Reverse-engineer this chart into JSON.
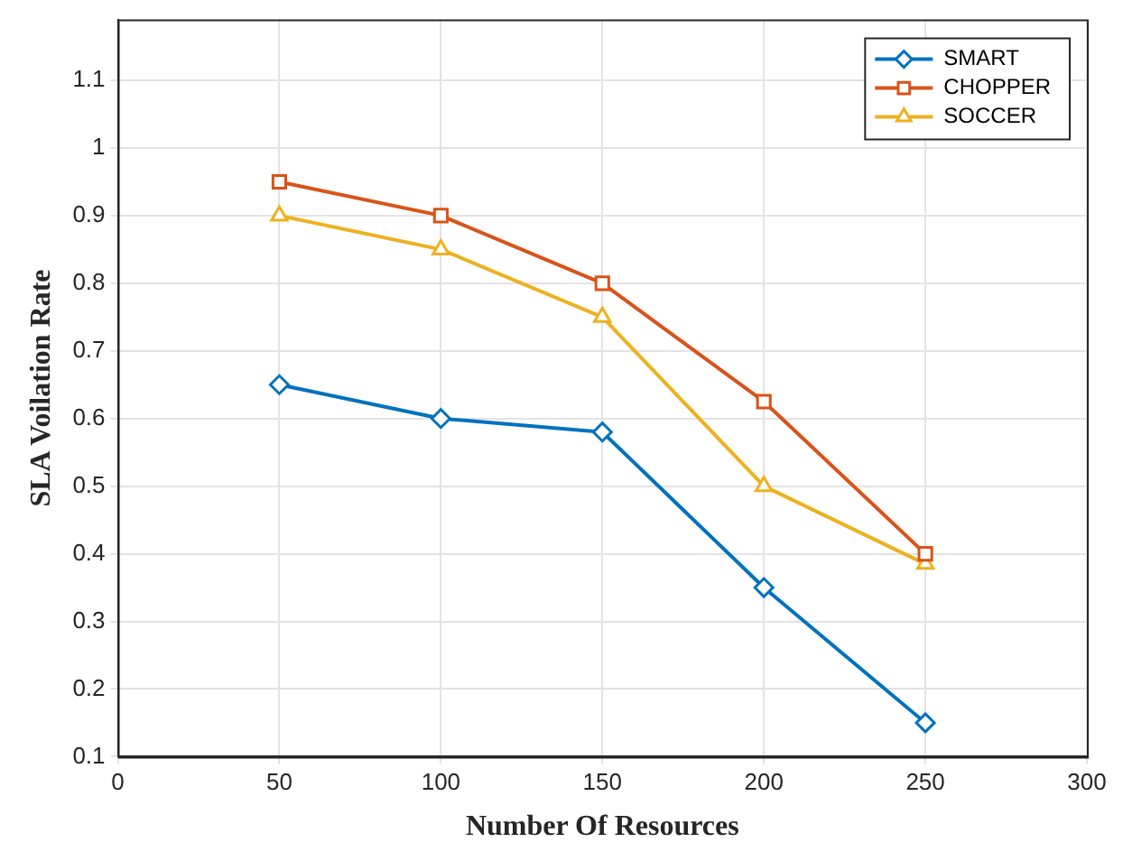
{
  "chart_data": {
    "type": "line",
    "xlabel": "Number Of Resources",
    "ylabel": "SLA Voilation Rate",
    "x": [
      50,
      100,
      150,
      200,
      250
    ],
    "series": [
      {
        "name": "SMART",
        "color": "#0072bd",
        "marker": "diamond",
        "values": [
          0.65,
          0.6,
          0.58,
          0.35,
          0.15
        ]
      },
      {
        "name": "CHOPPER",
        "color": "#d95319",
        "marker": "square",
        "values": [
          0.95,
          0.9,
          0.8,
          0.625,
          0.4
        ]
      },
      {
        "name": "SOCCER",
        "color": "#edb120",
        "marker": "triangle",
        "values": [
          0.9,
          0.85,
          0.75,
          0.5,
          0.385
        ]
      }
    ],
    "xlim": [
      0,
      300
    ],
    "xticks": [
      0,
      50,
      100,
      150,
      200,
      250,
      300
    ],
    "ylim": [
      0.1,
      1.19
    ],
    "yticks": [
      0.1,
      0.2,
      0.3,
      0.4,
      0.5,
      0.6,
      0.7,
      0.8,
      0.9,
      1,
      1.1
    ],
    "grid": true,
    "legend": "top right",
    "line_style": "solid"
  }
}
